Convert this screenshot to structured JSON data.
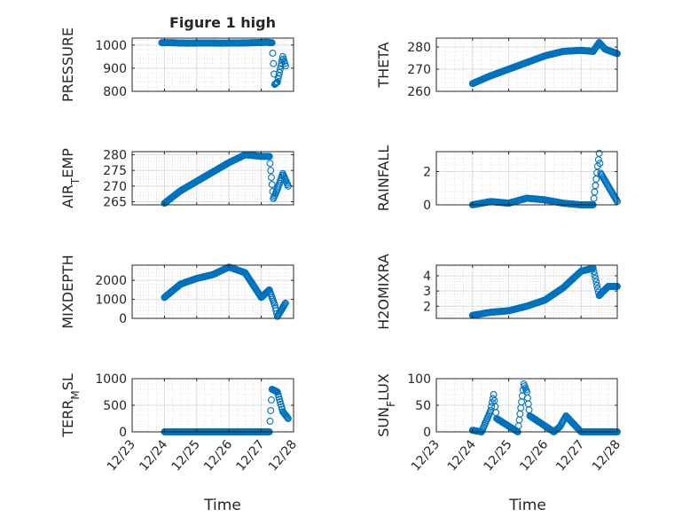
{
  "figure": {
    "title": "Figure 1 high",
    "xlabel": "Time",
    "date_ticks": [
      "12/23",
      "12/24",
      "12/25",
      "12/26",
      "12/27",
      "12/28"
    ]
  },
  "chart_data": [
    {
      "type": "scatter",
      "ylabel": "PRESSURE",
      "ylim": [
        800,
        1030
      ],
      "yticks": [
        800,
        900,
        1000
      ],
      "xlim": [
        "12/23",
        "12/28"
      ],
      "grid": true,
      "marker_color": "#0072bd",
      "x": [
        "12/23 22:00",
        "12/24 06:00",
        "12/24 18:00",
        "12/25 06:00",
        "12/25 18:00",
        "12/26 06:00",
        "12/26 18:00",
        "12/27 04:00",
        "12/27 08:00",
        "12/27 10:00",
        "12/27 12:00",
        "12/27 16:00",
        "12/27 18:00"
      ],
      "y": [
        1010,
        1010,
        1008,
        1009,
        1008,
        1009,
        1010,
        1012,
        1010,
        830,
        840,
        950,
        910
      ]
    },
    {
      "type": "scatter",
      "ylabel": "THETA",
      "ylim": [
        260,
        284
      ],
      "yticks": [
        260,
        270,
        280
      ],
      "xlim": [
        "12/23",
        "12/28"
      ],
      "grid": true,
      "marker_color": "#0072bd",
      "x": [
        "12/24 00:00",
        "12/24 12:00",
        "12/25 00:00",
        "12/25 12:00",
        "12/26 00:00",
        "12/26 12:00",
        "12/27 00:00",
        "12/27 08:00",
        "12/27 12:00",
        "12/27 16:00",
        "12/28 00:00"
      ],
      "y": [
        263.5,
        267,
        270,
        273,
        276,
        278,
        278.5,
        278,
        282,
        279,
        277
      ]
    },
    {
      "type": "scatter",
      "ylabel": "AIR_TEMP",
      "ylim": [
        264,
        281
      ],
      "yticks": [
        265,
        270,
        275,
        280
      ],
      "xlim": [
        "12/23",
        "12/28"
      ],
      "grid": true,
      "marker_color": "#0072bd",
      "x": [
        "12/24 00:00",
        "12/24 12:00",
        "12/25 00:00",
        "12/25 12:00",
        "12/26 00:00",
        "12/26 12:00",
        "12/27 00:00",
        "12/27 06:00",
        "12/27 09:00",
        "12/27 12:00",
        "12/27 16:00",
        "12/27 20:00"
      ],
      "y": [
        264.5,
        268.5,
        271.5,
        274.5,
        277.5,
        280,
        279.5,
        279.5,
        266,
        269,
        274,
        270
      ]
    },
    {
      "type": "scatter",
      "ylabel": "RAINFALL",
      "ylim": [
        0,
        3.2
      ],
      "yticks": [
        0,
        2
      ],
      "xlim": [
        "12/23",
        "12/28"
      ],
      "grid": true,
      "marker_color": "#0072bd",
      "x": [
        "12/24 00:00",
        "12/24 12:00",
        "12/25 00:00",
        "12/25 12:00",
        "12/26 00:00",
        "12/26 12:00",
        "12/27 00:00",
        "12/27 08:00",
        "12/27 12:00",
        "12/27 13:00",
        "12/28 00:00"
      ],
      "y": [
        0,
        0.2,
        0.1,
        0.4,
        0.3,
        0.1,
        0,
        0,
        3.1,
        1.9,
        0.2
      ]
    },
    {
      "type": "scatter",
      "ylabel": "MIXDEPTH",
      "ylim": [
        0,
        2800
      ],
      "yticks": [
        0,
        1000,
        2000
      ],
      "xlim": [
        "12/23",
        "12/28"
      ],
      "grid": true,
      "marker_color": "#0072bd",
      "x": [
        "12/24 00:00",
        "12/24 12:00",
        "12/25 00:00",
        "12/25 12:00",
        "12/26 00:00",
        "12/26 12:00",
        "12/27 00:00",
        "12/27 06:00",
        "12/27 10:00",
        "12/27 12:00",
        "12/27 18:00"
      ],
      "y": [
        1100,
        1800,
        2100,
        2300,
        2700,
        2400,
        1100,
        1500,
        700,
        100,
        800
      ]
    },
    {
      "type": "scatter",
      "ylabel": "H2OMIXRA",
      "ylim": [
        1.2,
        4.7
      ],
      "yticks": [
        2,
        3,
        4
      ],
      "xlim": [
        "12/23",
        "12/28"
      ],
      "grid": true,
      "marker_color": "#0072bd",
      "x": [
        "12/24 00:00",
        "12/24 12:00",
        "12/25 00:00",
        "12/25 12:00",
        "12/26 00:00",
        "12/26 12:00",
        "12/27 00:00",
        "12/27 08:00",
        "12/27 12:00",
        "12/27 18:00",
        "12/28 00:00"
      ],
      "y": [
        1.4,
        1.6,
        1.7,
        2.0,
        2.4,
        3.2,
        4.3,
        4.5,
        2.7,
        3.3,
        3.3
      ]
    },
    {
      "type": "scatter",
      "ylabel": "TERR_MSL",
      "ylim": [
        0,
        1000
      ],
      "yticks": [
        0,
        500,
        1000
      ],
      "xlim": [
        "12/23",
        "12/28"
      ],
      "grid": true,
      "marker_color": "#0072bd",
      "x": [
        "12/24 00:00",
        "12/25 00:00",
        "12/26 00:00",
        "12/27 00:00",
        "12/27 06:00",
        "12/27 08:00",
        "12/27 12:00",
        "12/27 16:00",
        "12/27 20:00"
      ],
      "y": [
        0,
        0,
        0,
        0,
        0,
        800,
        750,
        380,
        250
      ]
    },
    {
      "type": "scatter",
      "ylabel": "SUN_FLUX",
      "ylim": [
        0,
        100
      ],
      "yticks": [
        0,
        50,
        100
      ],
      "xlim": [
        "12/23",
        "12/28"
      ],
      "grid": true,
      "marker_color": "#0072bd",
      "x": [
        "12/24 00:00",
        "12/24 06:00",
        "12/24 12:00",
        "12/24 14:00",
        "12/24 16:00",
        "12/25 06:00",
        "12/25 10:00",
        "12/25 12:00",
        "12/25 14:00",
        "12/26 06:00",
        "12/26 10:00",
        "12/26 14:00",
        "12/27 00:00",
        "12/28 00:00"
      ],
      "y": [
        3,
        0,
        40,
        70,
        25,
        0,
        90,
        75,
        30,
        0,
        10,
        30,
        0,
        0
      ]
    }
  ]
}
